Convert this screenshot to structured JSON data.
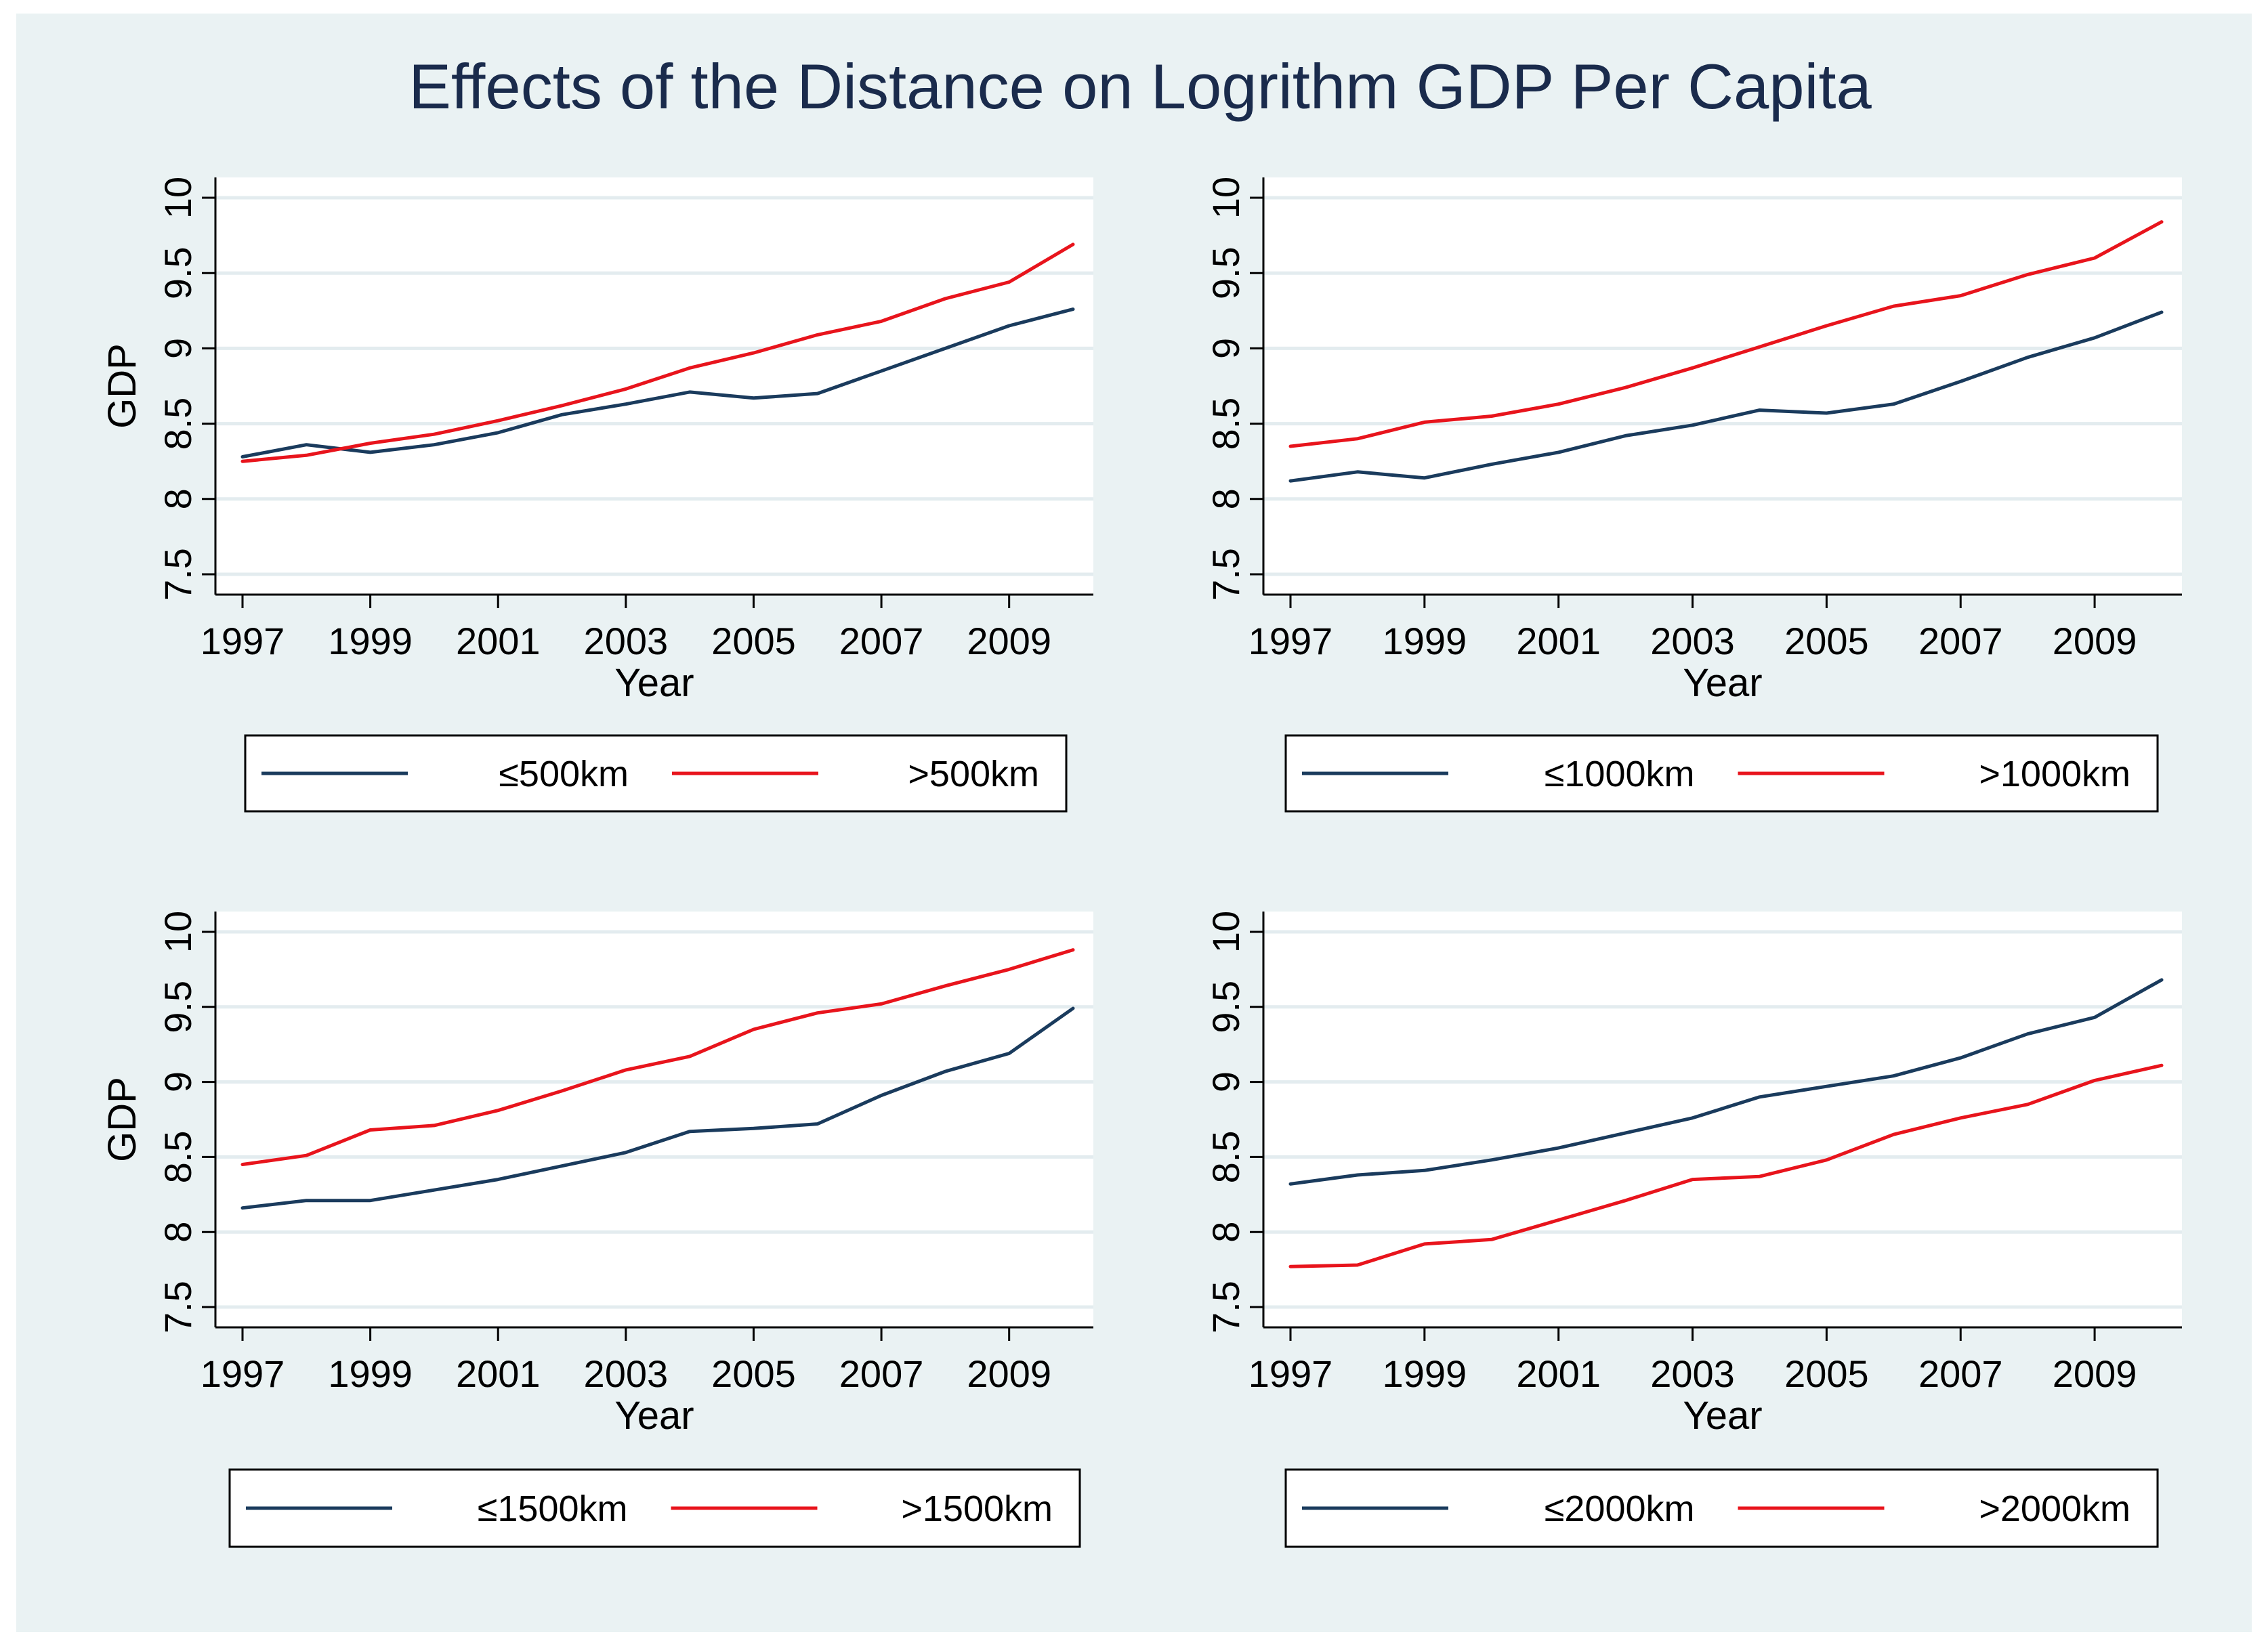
{
  "title": "Effects of the Distance on Logrithm GDP Per Capita",
  "colors": {
    "outer_bg": "#eaf2f3",
    "plot_bg": "#ffffff",
    "grid": "#e3ecef",
    "near": "#1a3b5d",
    "far": "#e8141c",
    "axis": "#000000"
  },
  "chart_data": [
    {
      "type": "line",
      "title": "",
      "xlabel": "Year",
      "ylabel": "GDP",
      "xlim": [
        1997,
        2010
      ],
      "ylim": [
        7.5,
        10
      ],
      "xticks": [
        "1997",
        "1999",
        "2001",
        "2003",
        "2005",
        "2007",
        "2009"
      ],
      "yticks": [
        "7.5",
        "8",
        "8.5",
        "9",
        "9.5",
        "10"
      ],
      "x": [
        1997,
        1998,
        1999,
        2000,
        2001,
        2002,
        2003,
        2004,
        2005,
        2006,
        2007,
        2008,
        2009,
        2010
      ],
      "series": [
        {
          "name": "≤500km",
          "color_key": "near",
          "values": [
            8.28,
            8.36,
            8.31,
            8.36,
            8.44,
            8.56,
            8.63,
            8.71,
            8.67,
            8.7,
            8.85,
            9.0,
            9.15,
            9.26
          ]
        },
        {
          "name": ">500km",
          "color_key": "far",
          "values": [
            8.25,
            8.29,
            8.37,
            8.43,
            8.52,
            8.62,
            8.73,
            8.87,
            8.97,
            9.09,
            9.18,
            9.33,
            9.44,
            9.69
          ]
        }
      ],
      "legend": [
        "≤500km",
        ">500km"
      ]
    },
    {
      "type": "line",
      "title": "",
      "xlabel": "Year",
      "ylabel": "",
      "xlim": [
        1997,
        2010
      ],
      "ylim": [
        7.5,
        10
      ],
      "xticks": [
        "1997",
        "1999",
        "2001",
        "2003",
        "2005",
        "2007",
        "2009"
      ],
      "yticks": [
        "7.5",
        "8",
        "8.5",
        "9",
        "9.5",
        "10"
      ],
      "x": [
        1997,
        1998,
        1999,
        2000,
        2001,
        2002,
        2003,
        2004,
        2005,
        2006,
        2007,
        2008,
        2009,
        2010
      ],
      "series": [
        {
          "name": "≤1000km",
          "color_key": "near",
          "values": [
            8.12,
            8.18,
            8.14,
            8.23,
            8.31,
            8.42,
            8.49,
            8.59,
            8.57,
            8.63,
            8.78,
            8.94,
            9.07,
            9.24
          ]
        },
        {
          "name": ">1000km",
          "color_key": "far",
          "values": [
            8.35,
            8.4,
            8.51,
            8.55,
            8.63,
            8.74,
            8.87,
            9.01,
            9.15,
            9.28,
            9.35,
            9.49,
            9.6,
            9.84
          ]
        }
      ],
      "legend": [
        "≤1000km",
        ">1000km"
      ]
    },
    {
      "type": "line",
      "title": "",
      "xlabel": "Year",
      "ylabel": "GDP",
      "xlim": [
        1997,
        2010
      ],
      "ylim": [
        7.5,
        10
      ],
      "xticks": [
        "1997",
        "1999",
        "2001",
        "2003",
        "2005",
        "2007",
        "2009"
      ],
      "yticks": [
        "7.5",
        "8",
        "8.5",
        "9",
        "9.5",
        "10"
      ],
      "x": [
        1997,
        1998,
        1999,
        2000,
        2001,
        2002,
        2003,
        2004,
        2005,
        2006,
        2007,
        2008,
        2009,
        2010
      ],
      "series": [
        {
          "name": "≤1500km",
          "color_key": "near",
          "values": [
            8.16,
            8.21,
            8.21,
            8.28,
            8.35,
            8.44,
            8.53,
            8.67,
            8.69,
            8.72,
            8.91,
            9.07,
            9.19,
            9.49
          ]
        },
        {
          "name": ">1500km",
          "color_key": "far",
          "values": [
            8.45,
            8.51,
            8.68,
            8.71,
            8.81,
            8.94,
            9.08,
            9.17,
            9.35,
            9.46,
            9.52,
            9.64,
            9.75,
            9.88
          ]
        }
      ],
      "legend": [
        "≤1500km",
        ">1500km"
      ]
    },
    {
      "type": "line",
      "title": "",
      "xlabel": "Year",
      "ylabel": "",
      "xlim": [
        1997,
        2010
      ],
      "ylim": [
        7.5,
        10
      ],
      "xticks": [
        "1997",
        "1999",
        "2001",
        "2003",
        "2005",
        "2007",
        "2009"
      ],
      "yticks": [
        "7.5",
        "8",
        "8.5",
        "9",
        "9.5",
        "10"
      ],
      "x": [
        1997,
        1998,
        1999,
        2000,
        2001,
        2002,
        2003,
        2004,
        2005,
        2006,
        2007,
        2008,
        2009,
        2010
      ],
      "series": [
        {
          "name": "≤2000km",
          "color_key": "near",
          "values": [
            8.32,
            8.38,
            8.41,
            8.48,
            8.56,
            8.66,
            8.76,
            8.9,
            8.97,
            9.04,
            9.16,
            9.32,
            9.43,
            9.68
          ]
        },
        {
          "name": ">2000km",
          "color_key": "far",
          "values": [
            7.77,
            7.78,
            7.92,
            7.95,
            8.08,
            8.21,
            8.35,
            8.37,
            8.48,
            8.65,
            8.76,
            8.85,
            9.01,
            9.11
          ]
        }
      ],
      "legend": [
        "≤2000km",
        ">2000km"
      ]
    }
  ]
}
